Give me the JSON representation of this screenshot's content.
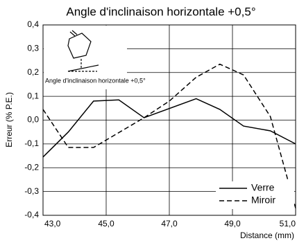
{
  "chart_data": {
    "type": "line",
    "title": "Angle d'inclinaison horizontale +0,5°",
    "x_label": "Distance (mm)",
    "y_label": "Erreur (% P.E.)",
    "annotation": "Angle d'inclinaison horizontale +0,5°",
    "xlim": [
      43,
      51
    ],
    "xticks": [
      {
        "value": 43,
        "label": "43,0"
      },
      {
        "value": 45,
        "label": "45,0"
      },
      {
        "value": 47,
        "label": "47,0"
      },
      {
        "value": 49,
        "label": "49,0"
      },
      {
        "value": 51,
        "label": "51,0"
      }
    ],
    "ylim": [
      -0.4,
      0.4
    ],
    "yticks": [
      {
        "value": -0.4,
        "label": "-0,4"
      },
      {
        "value": -0.3,
        "label": "-0,3"
      },
      {
        "value": -0.2,
        "label": "-0,2"
      },
      {
        "value": -0.1,
        "label": "-0,1"
      },
      {
        "value": 0,
        "label": "0,0"
      },
      {
        "value": 0.1,
        "label": "0,1"
      },
      {
        "value": 0.2,
        "label": "0,2"
      },
      {
        "value": 0.3,
        "label": "0,3"
      },
      {
        "value": 0.4,
        "label": "0,4"
      }
    ],
    "grid": true,
    "legend": "lower right",
    "series": [
      {
        "name": "Verre",
        "color": "#000000",
        "dash": "solid",
        "x": [
          43.0,
          43.8,
          44.6,
          45.4,
          46.2,
          47.85,
          48.6,
          49.35,
          50.2,
          51.0
        ],
        "values": [
          -0.155,
          -0.05,
          0.08,
          0.085,
          0.01,
          0.09,
          0.045,
          -0.025,
          -0.045,
          -0.1
        ]
      },
      {
        "name": "Miroir",
        "color": "#000000",
        "dash": "dashed",
        "x": [
          43.0,
          43.8,
          44.6,
          46.2,
          47.0,
          47.85,
          48.6,
          49.35,
          50.2,
          51.0
        ],
        "values": [
          0.045,
          -0.115,
          -0.115,
          0.01,
          0.08,
          0.18,
          0.235,
          0.19,
          0.015,
          -0.37
        ]
      }
    ]
  }
}
